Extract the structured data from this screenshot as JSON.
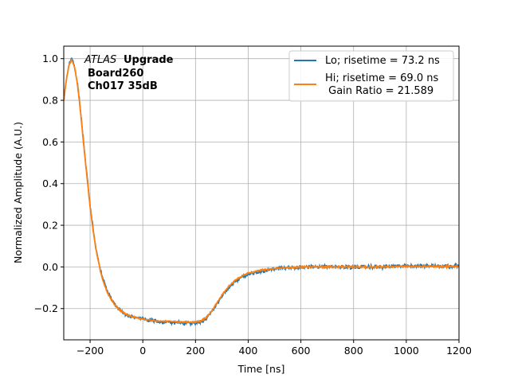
{
  "chart_data": {
    "type": "line",
    "xlabel": "Time [ns]",
    "ylabel": "Normalized Amplitude (A.U.)",
    "xlim": [
      -300,
      1200
    ],
    "ylim": [
      -0.35,
      1.06
    ],
    "xticks": [
      -200,
      0,
      200,
      400,
      600,
      800,
      1000,
      1200
    ],
    "yticks": [
      -0.2,
      0.0,
      0.2,
      0.4,
      0.6,
      0.8,
      1.0
    ],
    "xtick_labels": [
      "−200",
      "0",
      "200",
      "400",
      "600",
      "800",
      "1000",
      "1200"
    ],
    "ytick_labels": [
      "−0.2",
      "0.0",
      "0.2",
      "0.4",
      "0.6",
      "0.8",
      "1.0"
    ],
    "grid": true,
    "legend_position": "top-right",
    "annotation": {
      "atlas": "ATLAS",
      "upgrade": "Upgrade",
      "board": "Board260",
      "channel": "Ch017 35dB"
    },
    "series": [
      {
        "name": "Lo; risetime = 73.2 ns",
        "color": "#1f77b4",
        "noise": 0.012,
        "x": [
          -300,
          -290,
          -280,
          -270,
          -260,
          -250,
          -240,
          -230,
          -220,
          -210,
          -200,
          -190,
          -180,
          -170,
          -160,
          -150,
          -140,
          -130,
          -120,
          -110,
          -100,
          -80,
          -60,
          -40,
          -20,
          0,
          25,
          50,
          100,
          150,
          200,
          220,
          240,
          260,
          280,
          300,
          325,
          350,
          375,
          400,
          450,
          500,
          600,
          700,
          800,
          900,
          1000,
          1100,
          1200
        ],
        "y": [
          0.8,
          0.9,
          0.97,
          1.0,
          0.97,
          0.9,
          0.8,
          0.67,
          0.54,
          0.42,
          0.3,
          0.2,
          0.11,
          0.04,
          -0.02,
          -0.06,
          -0.1,
          -0.13,
          -0.15,
          -0.17,
          -0.19,
          -0.215,
          -0.23,
          -0.24,
          -0.245,
          -0.25,
          -0.255,
          -0.26,
          -0.265,
          -0.27,
          -0.27,
          -0.265,
          -0.25,
          -0.22,
          -0.18,
          -0.14,
          -0.1,
          -0.07,
          -0.05,
          -0.035,
          -0.02,
          -0.01,
          0.0,
          0.0,
          0.0,
          0.0,
          0.005,
          0.005,
          0.005
        ]
      },
      {
        "name": "Hi; risetime = 69.0 ns\n Gain Ratio = 21.589",
        "color": "#ff7f0e",
        "noise": 0.004,
        "x": [
          -300,
          -290,
          -280,
          -270,
          -260,
          -250,
          -240,
          -230,
          -220,
          -210,
          -200,
          -190,
          -180,
          -170,
          -160,
          -150,
          -140,
          -130,
          -120,
          -110,
          -100,
          -80,
          -60,
          -40,
          -20,
          0,
          25,
          50,
          100,
          150,
          200,
          220,
          240,
          260,
          280,
          300,
          325,
          350,
          375,
          400,
          450,
          500,
          600,
          700,
          800,
          900,
          1000,
          1100,
          1200
        ],
        "y": [
          0.8,
          0.9,
          0.97,
          0.995,
          0.965,
          0.895,
          0.79,
          0.66,
          0.53,
          0.41,
          0.29,
          0.19,
          0.1,
          0.035,
          -0.025,
          -0.07,
          -0.105,
          -0.135,
          -0.155,
          -0.175,
          -0.19,
          -0.215,
          -0.23,
          -0.24,
          -0.245,
          -0.25,
          -0.255,
          -0.26,
          -0.26,
          -0.265,
          -0.265,
          -0.26,
          -0.245,
          -0.215,
          -0.175,
          -0.135,
          -0.095,
          -0.065,
          -0.045,
          -0.03,
          -0.015,
          -0.008,
          0.0,
          0.0,
          0.0,
          0.0,
          0.002,
          0.002,
          0.002
        ]
      }
    ]
  }
}
